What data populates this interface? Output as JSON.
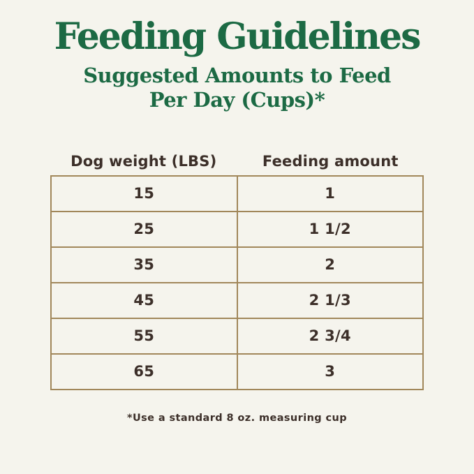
{
  "page": {
    "title": "Feeding Guidelines",
    "subtitle_line1": "Suggested Amounts to Feed",
    "subtitle_line2": "Per Day (Cups)*",
    "footnote": "*Use a standard 8 oz. measuring cup"
  },
  "table": {
    "columns": {
      "weight": "Dog weight (LBS)",
      "amount": "Feeding amount"
    },
    "rows": [
      {
        "weight": "15",
        "amount": "1"
      },
      {
        "weight": "25",
        "amount": "1 1/2"
      },
      {
        "weight": "35",
        "amount": "2"
      },
      {
        "weight": "45",
        "amount": "2 1/3"
      },
      {
        "weight": "55",
        "amount": "2 3/4"
      },
      {
        "weight": "65",
        "amount": "3"
      }
    ]
  },
  "colors": {
    "background": "#f5f4ed",
    "heading_green": "#1c6a44",
    "table_border": "#a1875a",
    "text_dark": "#3c2f29"
  }
}
